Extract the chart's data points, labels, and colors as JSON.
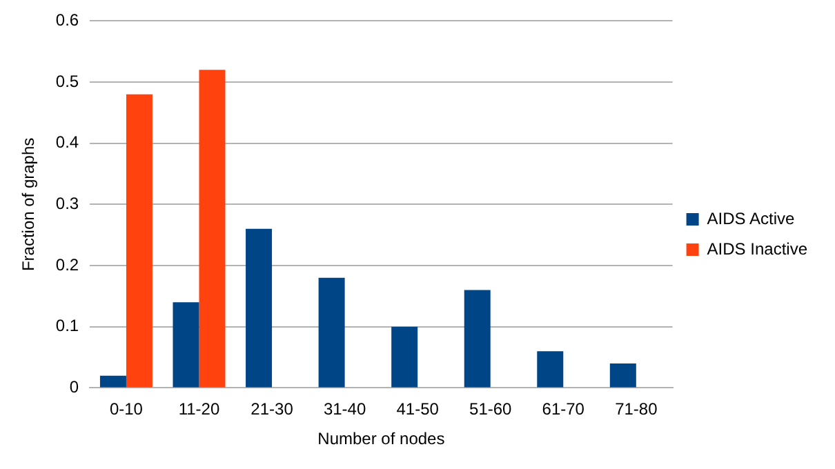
{
  "chart_data": {
    "type": "bar",
    "xlabel": "Number of nodes",
    "ylabel": "Fraction of graphs",
    "categories": [
      "0-10",
      "11-20",
      "21-30",
      "31-40",
      "41-50",
      "51-60",
      "61-70",
      "71-80"
    ],
    "series": [
      {
        "name": "AIDS Active",
        "color": "#004586",
        "values": [
          0.02,
          0.14,
          0.26,
          0.18,
          0.1,
          0.16,
          0.06,
          0.04
        ]
      },
      {
        "name": "AIDS Inactive",
        "color": "#ff420e",
        "values": [
          0.48,
          0.52,
          0,
          0,
          0,
          0,
          0,
          0
        ]
      }
    ],
    "ylim": [
      0,
      0.6
    ],
    "yticks": [
      0,
      0.1,
      0.2,
      0.3,
      0.4,
      0.5,
      0.6
    ],
    "grid": "y",
    "legend": "right"
  }
}
